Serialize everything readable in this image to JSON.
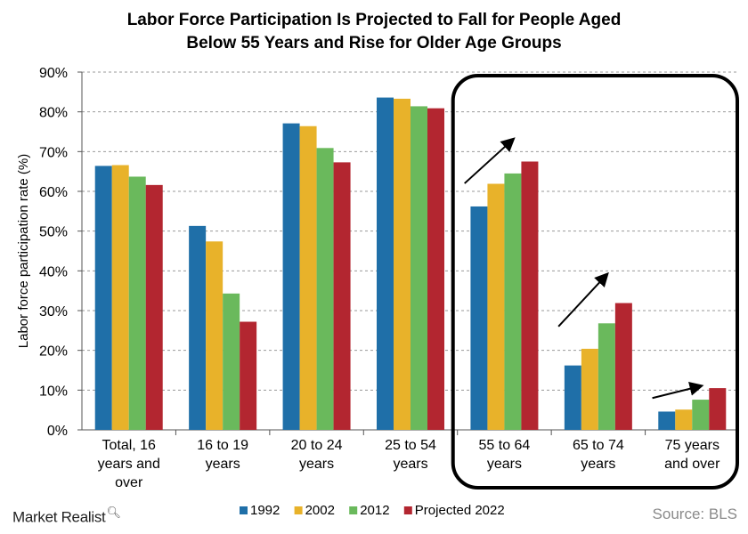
{
  "chart_data": {
    "type": "bar",
    "title_line1": "Labor Force Participation Is Projected to Fall for People Aged",
    "title_line2": "Below 55 Years and Rise for Older Age Groups",
    "ylabel": "Labor force participation rate (%)",
    "xlabel": "",
    "ylim": [
      0,
      90
    ],
    "yticks": [
      "0%",
      "10%",
      "20%",
      "30%",
      "40%",
      "50%",
      "60%",
      "70%",
      "80%",
      "90%"
    ],
    "grid": true,
    "categories": [
      [
        "Total, 16",
        "years and",
        "over"
      ],
      [
        "16 to 19",
        "years"
      ],
      [
        "20 to 24",
        "years"
      ],
      [
        "25 to 54",
        "years"
      ],
      [
        "55 to 64",
        "years"
      ],
      [
        "65 to 74",
        "years"
      ],
      [
        "75 years",
        "and over"
      ]
    ],
    "series": [
      {
        "name": "1992",
        "color": "#1f6fa8",
        "values": [
          66.4,
          51.3,
          77.1,
          83.6,
          56.2,
          16.2,
          4.6
        ]
      },
      {
        "name": "2002",
        "color": "#e8b22a",
        "values": [
          66.6,
          47.4,
          76.4,
          83.3,
          61.9,
          20.4,
          5.1
        ]
      },
      {
        "name": "2012",
        "color": "#6ab95c",
        "values": [
          63.7,
          34.3,
          70.9,
          81.4,
          64.5,
          26.8,
          7.6
        ]
      },
      {
        "name": "Projected 2022",
        "color": "#b32630",
        "values": [
          61.6,
          27.2,
          67.3,
          80.9,
          67.5,
          31.9,
          10.5
        ]
      }
    ],
    "legend_position": "bottom",
    "highlight": "rounded box around the three oldest age groups with upward trend arrows"
  },
  "branding": {
    "name": "Market Realist",
    "source": "Source: BLS"
  }
}
